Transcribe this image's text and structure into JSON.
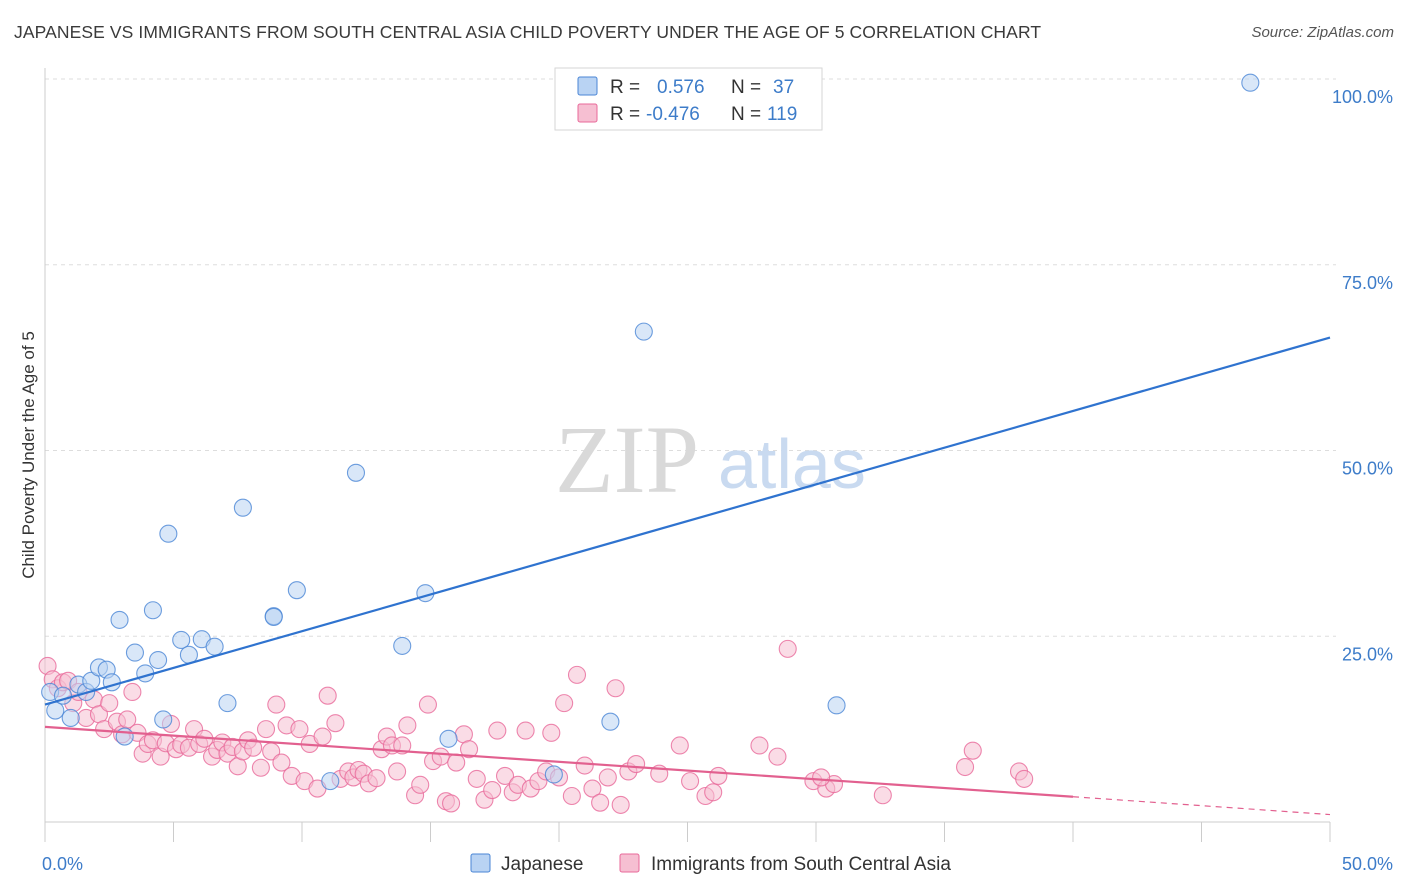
{
  "header": {
    "title": "JAPANESE VS IMMIGRANTS FROM SOUTH CENTRAL ASIA CHILD POVERTY UNDER THE AGE OF 5 CORRELATION CHART",
    "source": "Source: ZipAtlas.com"
  },
  "watermark": {
    "zip": "ZIP",
    "atlas": "atlas"
  },
  "colors": {
    "japanese": "#4a86d6",
    "japanese_fill": "#b9d3f3",
    "immigrants": "#e8699a",
    "immigrants_fill": "#f6bfd2",
    "tick_text": "#3d7cc9",
    "grid": "#dddddd"
  },
  "legend_top": [
    {
      "r_label": "R =",
      "r_value": "0.576",
      "n_label": "N =",
      "n_value": "37"
    },
    {
      "r_label": "R =",
      "r_value": "-0.476",
      "n_label": "N =",
      "n_value": "119"
    }
  ],
  "chart_data": {
    "type": "scatter",
    "title": "JAPANESE VS IMMIGRANTS FROM SOUTH CENTRAL ASIA CHILD POVERTY UNDER THE AGE OF 5 CORRELATION CHART",
    "ylabel": "Child Poverty Under the Age of 5",
    "xlabel": "",
    "xlim": [
      0,
      50
    ],
    "ylim": [
      0,
      100
    ],
    "x_tick_labels": [
      {
        "value": 0,
        "label": "0.0%"
      },
      {
        "value": 50,
        "label": "50.0%"
      }
    ],
    "y_tick_labels": [
      {
        "value": 100,
        "label": "100.0%"
      },
      {
        "value": 75,
        "label": "75.0%"
      },
      {
        "value": 50,
        "label": "50.0%"
      },
      {
        "value": 25,
        "label": "25.0%"
      }
    ],
    "grid": true,
    "legend_position": "bottom",
    "series": [
      {
        "name": "Japanese",
        "r": 0.576,
        "n": 37,
        "trend": {
          "x": [
            0,
            50
          ],
          "y": [
            15.8,
            65.2
          ]
        },
        "points": [
          [
            0.2,
            17.5
          ],
          [
            0.4,
            15.0
          ],
          [
            0.7,
            17.0
          ],
          [
            1.0,
            14.0
          ],
          [
            1.3,
            18.5
          ],
          [
            1.6,
            17.5
          ],
          [
            1.8,
            19.0
          ],
          [
            2.1,
            20.8
          ],
          [
            2.4,
            20.5
          ],
          [
            2.6,
            18.8
          ],
          [
            2.9,
            27.2
          ],
          [
            3.1,
            11.5
          ],
          [
            3.5,
            22.8
          ],
          [
            3.9,
            20.0
          ],
          [
            4.2,
            28.5
          ],
          [
            4.4,
            21.8
          ],
          [
            4.6,
            13.8
          ],
          [
            4.8,
            38.8
          ],
          [
            5.3,
            24.5
          ],
          [
            5.6,
            22.5
          ],
          [
            6.1,
            24.6
          ],
          [
            6.6,
            23.6
          ],
          [
            7.1,
            16.0
          ],
          [
            7.7,
            42.3
          ],
          [
            8.9,
            27.7
          ],
          [
            8.9,
            27.6
          ],
          [
            9.8,
            31.2
          ],
          [
            11.1,
            5.5
          ],
          [
            12.1,
            47.0
          ],
          [
            13.9,
            23.7
          ],
          [
            14.8,
            30.8
          ],
          [
            15.7,
            11.2
          ],
          [
            19.8,
            6.4
          ],
          [
            22.0,
            13.5
          ],
          [
            23.3,
            66.0
          ],
          [
            30.8,
            15.7
          ],
          [
            46.9,
            99.5
          ]
        ]
      },
      {
        "name": "Immigrants from South Central Asia",
        "r": -0.476,
        "n": 119,
        "trend": {
          "x": [
            0,
            40
          ],
          "y": [
            12.8,
            3.4
          ]
        },
        "trend_dashed": {
          "x": [
            40,
            50
          ],
          "y": [
            3.4,
            1.0
          ]
        },
        "points": [
          [
            0.1,
            21.0
          ],
          [
            0.3,
            19.2
          ],
          [
            0.5,
            18.0
          ],
          [
            0.7,
            18.8
          ],
          [
            0.9,
            19.0
          ],
          [
            1.1,
            16.0
          ],
          [
            1.3,
            17.5
          ],
          [
            1.6,
            14.0
          ],
          [
            1.9,
            16.5
          ],
          [
            2.1,
            14.5
          ],
          [
            2.3,
            12.5
          ],
          [
            2.5,
            16.0
          ],
          [
            2.8,
            13.5
          ],
          [
            3.0,
            11.8
          ],
          [
            3.2,
            13.8
          ],
          [
            3.4,
            17.5
          ],
          [
            3.6,
            12.0
          ],
          [
            3.8,
            9.2
          ],
          [
            4.0,
            10.5
          ],
          [
            4.2,
            11.0
          ],
          [
            4.5,
            8.8
          ],
          [
            4.7,
            10.6
          ],
          [
            4.9,
            13.2
          ],
          [
            5.1,
            9.8
          ],
          [
            5.3,
            10.4
          ],
          [
            5.6,
            10.0
          ],
          [
            5.8,
            12.5
          ],
          [
            6.0,
            10.5
          ],
          [
            6.2,
            11.2
          ],
          [
            6.5,
            8.8
          ],
          [
            6.7,
            9.7
          ],
          [
            6.9,
            10.7
          ],
          [
            7.1,
            9.2
          ],
          [
            7.3,
            10.1
          ],
          [
            7.5,
            7.5
          ],
          [
            7.7,
            9.5
          ],
          [
            7.9,
            11.0
          ],
          [
            8.1,
            10.0
          ],
          [
            8.4,
            7.3
          ],
          [
            8.6,
            12.5
          ],
          [
            8.8,
            9.5
          ],
          [
            9.0,
            15.8
          ],
          [
            9.2,
            8.0
          ],
          [
            9.4,
            13.0
          ],
          [
            9.6,
            6.2
          ],
          [
            9.9,
            12.5
          ],
          [
            10.1,
            5.5
          ],
          [
            10.3,
            10.5
          ],
          [
            10.6,
            4.5
          ],
          [
            10.8,
            11.5
          ],
          [
            11.0,
            17.0
          ],
          [
            11.3,
            13.3
          ],
          [
            11.5,
            5.8
          ],
          [
            11.8,
            6.8
          ],
          [
            12.0,
            6.0
          ],
          [
            12.2,
            7.0
          ],
          [
            12.4,
            6.5
          ],
          [
            12.6,
            5.2
          ],
          [
            12.9,
            5.9
          ],
          [
            13.1,
            9.8
          ],
          [
            13.3,
            11.5
          ],
          [
            13.5,
            10.3
          ],
          [
            13.7,
            6.8
          ],
          [
            13.9,
            10.3
          ],
          [
            14.1,
            13.0
          ],
          [
            14.4,
            3.6
          ],
          [
            14.6,
            5.0
          ],
          [
            14.9,
            15.8
          ],
          [
            15.1,
            8.2
          ],
          [
            15.4,
            8.8
          ],
          [
            15.6,
            2.8
          ],
          [
            15.8,
            2.5
          ],
          [
            16.0,
            8.0
          ],
          [
            16.3,
            11.8
          ],
          [
            16.5,
            9.8
          ],
          [
            16.8,
            5.8
          ],
          [
            17.1,
            3.0
          ],
          [
            17.4,
            4.3
          ],
          [
            17.6,
            12.3
          ],
          [
            17.9,
            6.2
          ],
          [
            18.2,
            4.0
          ],
          [
            18.4,
            5.0
          ],
          [
            18.7,
            12.3
          ],
          [
            18.9,
            4.5
          ],
          [
            19.2,
            5.5
          ],
          [
            19.5,
            6.8
          ],
          [
            19.7,
            12.0
          ],
          [
            20.0,
            6.0
          ],
          [
            20.2,
            16.0
          ],
          [
            20.5,
            3.5
          ],
          [
            20.7,
            19.8
          ],
          [
            21.0,
            7.6
          ],
          [
            21.3,
            4.5
          ],
          [
            21.6,
            2.6
          ],
          [
            21.9,
            6.0
          ],
          [
            22.2,
            18.0
          ],
          [
            22.4,
            2.3
          ],
          [
            22.7,
            6.8
          ],
          [
            23.0,
            7.8
          ],
          [
            23.9,
            6.5
          ],
          [
            24.7,
            10.3
          ],
          [
            25.1,
            5.5
          ],
          [
            25.7,
            3.5
          ],
          [
            26.0,
            4.0
          ],
          [
            26.2,
            6.2
          ],
          [
            27.8,
            10.3
          ],
          [
            28.5,
            8.8
          ],
          [
            28.9,
            23.3
          ],
          [
            29.9,
            5.5
          ],
          [
            30.4,
            4.5
          ],
          [
            30.7,
            5.1
          ],
          [
            32.6,
            3.6
          ],
          [
            35.8,
            7.4
          ],
          [
            36.1,
            9.6
          ],
          [
            37.9,
            6.8
          ],
          [
            38.1,
            5.8
          ],
          [
            30.2,
            6.0
          ]
        ]
      }
    ]
  }
}
